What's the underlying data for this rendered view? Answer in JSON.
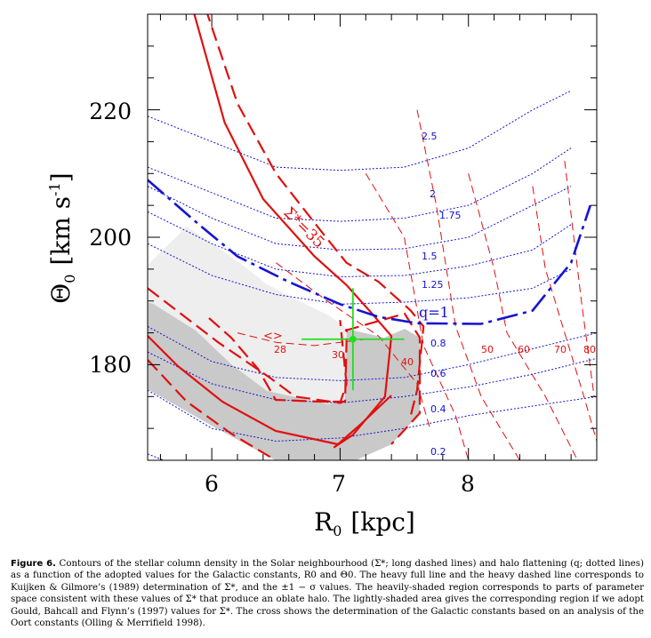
{
  "figure": {
    "x_axis": {
      "label_main": "R",
      "label_sub": "0",
      "label_unit": "[kpc]",
      "ticks": [
        "6",
        "7",
        "8"
      ]
    },
    "y_axis": {
      "label_main": "Θ",
      "label_sub": "0",
      "label_unit_open": "[km s",
      "label_sup": "-1",
      "label_unit_close": "]",
      "ticks": [
        "180",
        "200",
        "220"
      ]
    },
    "q_labels": [
      "2.5",
      "2",
      "1.75",
      "1.5",
      "1.25",
      "q=1",
      "0.8",
      "0.6",
      "0.4",
      "0.2"
    ],
    "sigma_labels": [
      "28",
      "30",
      "40",
      "50",
      "60",
      "70",
      "80"
    ],
    "sigma_35_label": "Σ*=35",
    "gould_label": "<>",
    "colors": {
      "q_contour": "#1414d2",
      "sigma_contour": "#e01010",
      "heavy_shade": "#c9c9c9",
      "light_shade": "#eeeeee",
      "cross": "#22dd22"
    }
  },
  "chart_data": {
    "type": "contour",
    "xlabel": "R0 [kpc]",
    "ylabel": "Θ0 [km s-1]",
    "xlim": [
      5.5,
      9.0
    ],
    "ylim": [
      165,
      235
    ],
    "x_ticks": [
      6,
      7,
      8
    ],
    "y_ticks": [
      180,
      200,
      220
    ],
    "halo_flattening_q": [
      {
        "level": "2.5",
        "x": [
          5.5,
          6.0,
          6.5,
          7.0,
          7.5,
          8.0,
          8.5,
          8.8
        ],
        "y": [
          219,
          215,
          211,
          210.5,
          211,
          214,
          220,
          223
        ]
      },
      {
        "level": "2",
        "x": [
          5.5,
          6.0,
          6.5,
          7.0,
          7.5,
          8.0,
          8.5,
          8.8
        ],
        "y": [
          211,
          207,
          203,
          202.5,
          203,
          205,
          210,
          214
        ]
      },
      {
        "level": "1.75",
        "x": [
          5.5,
          6.0,
          6.5,
          7.0,
          7.5,
          8.0,
          8.5,
          8.8
        ],
        "y": [
          208,
          203,
          199,
          198,
          198.2,
          200,
          205,
          208
        ]
      },
      {
        "level": "1.5",
        "x": [
          5.5,
          6.0,
          6.5,
          7.0,
          7.5,
          8.0,
          8.5,
          8.8
        ],
        "y": [
          204,
          199,
          195,
          193.8,
          194,
          195.5,
          198,
          202
        ]
      },
      {
        "level": "1.25",
        "x": [
          5.5,
          6.0,
          6.5,
          7.0,
          7.5,
          8.0,
          8.5,
          8.8
        ],
        "y": [
          199,
          194,
          191,
          189.5,
          189.8,
          190.5,
          192,
          195
        ]
      },
      {
        "level": "q=1",
        "x": [
          5.5,
          5.9,
          6.2,
          6.6,
          7.0,
          7.3,
          7.6,
          8.1,
          8.5,
          8.8,
          8.95
        ],
        "y": [
          209,
          202,
          197,
          193,
          189.5,
          187.5,
          186.5,
          186.4,
          188.5,
          196,
          205
        ]
      },
      {
        "level": "0.8",
        "x": [
          5.5,
          6.0,
          6.5,
          7.0,
          7.5,
          8.0,
          8.5,
          9.0
        ],
        "y": [
          186,
          180.5,
          178,
          177.5,
          178,
          180,
          182.5,
          185
        ]
      },
      {
        "level": "0.6",
        "x": [
          5.5,
          6.0,
          6.5,
          7.0,
          7.5,
          8.0,
          8.5,
          9.0
        ],
        "y": [
          182,
          177,
          174.5,
          174,
          175,
          176.5,
          178.5,
          181
        ]
      },
      {
        "level": "0.4",
        "x": [
          5.5,
          6.0,
          6.5,
          7.0,
          7.5,
          8.0,
          8.5,
          9.0
        ],
        "y": [
          176,
          170,
          168,
          168.5,
          170,
          172,
          173.5,
          175
        ]
      },
      {
        "level": "0.2",
        "x": [
          5.5,
          6.0,
          6.5,
          7.0,
          7.5,
          8.0,
          8.5,
          9.0
        ],
        "y": [
          166,
          162,
          161,
          161,
          162,
          163,
          164,
          165
        ]
      }
    ],
    "stellar_column_density": [
      {
        "level": "28",
        "x": [
          6.2,
          6.5,
          6.8,
          7.0,
          7.2
        ],
        "y": [
          185,
          183.5,
          183,
          183.5,
          184
        ]
      },
      {
        "level": "30",
        "x": [
          6.5,
          6.9,
          7.3,
          7.6,
          7.7
        ],
        "y": [
          196,
          190,
          184.5,
          177,
          170
        ]
      },
      {
        "level": "40",
        "x": [
          7.2,
          7.5,
          7.65,
          7.9,
          8.0
        ],
        "y": [
          210,
          200,
          183,
          172,
          165
        ]
      },
      {
        "level": "50",
        "x": [
          7.6,
          7.75,
          7.9,
          8.1,
          8.4
        ],
        "y": [
          220,
          205,
          186,
          175,
          165
        ]
      },
      {
        "level": "60",
        "x": [
          8.0,
          8.2,
          8.3,
          8.6,
          8.85
        ],
        "y": [
          210,
          195,
          185,
          175,
          165
        ]
      },
      {
        "level": "70",
        "x": [
          8.5,
          8.6,
          8.75,
          8.9,
          9.0
        ],
        "y": [
          208,
          195,
          185,
          175,
          168
        ]
      },
      {
        "level": "80",
        "x": [
          8.75,
          8.88,
          8.98
        ],
        "y": [
          212,
          190,
          175
        ]
      }
    ],
    "sigma_35_kuijken_gilmore": {
      "central": {
        "x": [
          5.85,
          6.1,
          6.4,
          6.8,
          7.05,
          7.25,
          7.4,
          7.35,
          7.1,
          6.95
        ],
        "y": [
          236,
          218,
          206,
          197,
          192.5,
          188,
          184.5,
          175,
          169,
          167
        ]
      },
      "upper": {
        "x": [
          5.95,
          6.2,
          6.5,
          6.85,
          7.05,
          7.3,
          7.55,
          7.65,
          7.6,
          7.55
        ],
        "y": [
          236,
          221,
          210,
          201,
          196,
          193,
          188.5,
          186,
          176,
          172
        ]
      },
      "lower": {
        "x": [
          5.5,
          6.05,
          6.45,
          6.65,
          7.0,
          7.05,
          7.0
        ],
        "y": [
          192,
          183.5,
          178,
          175,
          174,
          177,
          187
        ]
      }
    },
    "oort_constants_cross": {
      "x": 7.1,
      "y": 184,
      "x_err": [
        6.7,
        7.5
      ],
      "y_err": [
        176,
        192
      ]
    }
  }
}
